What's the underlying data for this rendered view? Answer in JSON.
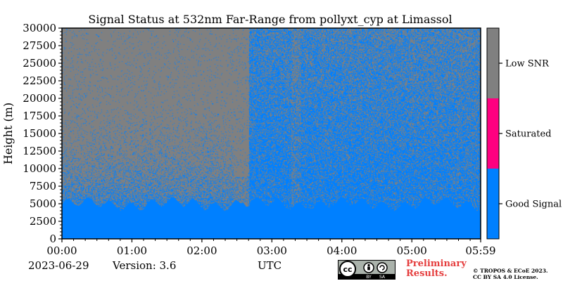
{
  "chart_data": {
    "type": "heatmap",
    "title": "Signal Status at 532nm Far-Range from pollyxt_cyp at Limassol",
    "xlabel": "UTC",
    "ylabel": "Height (m)",
    "x_ticks": [
      "00:00",
      "01:00",
      "02:00",
      "03:00",
      "04:00",
      "05:00",
      "05:59"
    ],
    "x_range": [
      "00:00",
      "05:59"
    ],
    "y_ticks": [
      0,
      2500,
      5000,
      7500,
      10000,
      12500,
      15000,
      17500,
      20000,
      22500,
      25000,
      27500,
      30000
    ],
    "ylim": [
      0,
      30000
    ],
    "colorbar": {
      "categories": [
        "Good Signal",
        "Saturated",
        "Low SNR"
      ],
      "colors": [
        "#0080ff",
        "#ff0080",
        "#808080"
      ]
    },
    "regions": [
      {
        "status": "Good Signal",
        "time_from": "00:00",
        "time_to": "05:59",
        "height_from": 0,
        "height_to": 5000,
        "coverage": 1.0
      },
      {
        "status": "Good Signal / Low SNR mix",
        "time_from": "00:00",
        "time_to": "02:40",
        "height_from": 5000,
        "height_to": 30000,
        "good_fraction_decreasing_with_height": true
      },
      {
        "status": "Low SNR",
        "time_from": "02:27",
        "time_to": "02:40",
        "height_from": 4000,
        "height_to": 30000,
        "coverage": 0.9
      },
      {
        "status": "Good Signal / Low SNR mix",
        "time_from": "02:40",
        "time_to": "05:59",
        "height_from": 5000,
        "height_to": 30000,
        "good_fraction_high": true
      }
    ]
  },
  "footer": {
    "date": "2023-06-29",
    "version": "Version: 3.6",
    "preliminary_line1": "Preliminary",
    "preliminary_line2": "Results.",
    "copyright_line1": "© TROPOS & ECoE 2023.",
    "copyright_line2": "CC BY SA 4.0 License.",
    "license_badge": {
      "text": "cc",
      "by": "BY",
      "sa": "SA",
      "icon": "creative-commons-by-sa-icon"
    }
  }
}
